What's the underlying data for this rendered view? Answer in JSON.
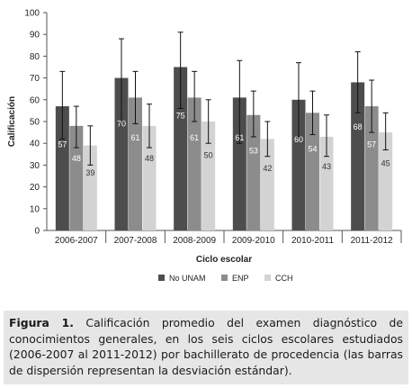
{
  "chart_data": {
    "type": "bar",
    "ylabel": "Calificación",
    "xlabel": "Ciclo escolar",
    "ylim": [
      0,
      100
    ],
    "yticks": [
      0,
      10,
      20,
      30,
      40,
      50,
      60,
      70,
      80,
      90,
      100
    ],
    "categories": [
      "2006-2007",
      "2007-2008",
      "2008-2009",
      "2009-2010",
      "2010-2011",
      "2011-2012"
    ],
    "series": [
      {
        "name": "No UNAM",
        "color": "#4d4d4d",
        "values": [
          57,
          70,
          75,
          61,
          60,
          68
        ],
        "error_low": [
          42,
          50,
          56,
          40,
          43,
          54
        ],
        "error_high": [
          73,
          88,
          91,
          78,
          77,
          82
        ]
      },
      {
        "name": "ENP",
        "color": "#8c8c8c",
        "values": [
          48,
          61,
          61,
          53,
          54,
          57
        ],
        "error_low": [
          38,
          49,
          50,
          43,
          44,
          45
        ],
        "error_high": [
          57,
          73,
          73,
          64,
          64,
          69
        ]
      },
      {
        "name": "CCH",
        "color": "#d3d3d3",
        "values": [
          39,
          48,
          50,
          42,
          43,
          45
        ],
        "error_low": [
          30,
          38,
          40,
          34,
          34,
          37
        ],
        "error_high": [
          48,
          58,
          60,
          50,
          53,
          54
        ]
      }
    ],
    "legend_position": "bottom",
    "grid": false
  },
  "caption": {
    "label": "Figura 1.",
    "text": "Calificación promedio del examen diagnóstico de conocimientos generales, en los seis ciclos escolares estudiados (2006-2007 al 2011-2012) por bachillerato de procedencia (las barras de dispersión representan la desviación estándar)."
  }
}
